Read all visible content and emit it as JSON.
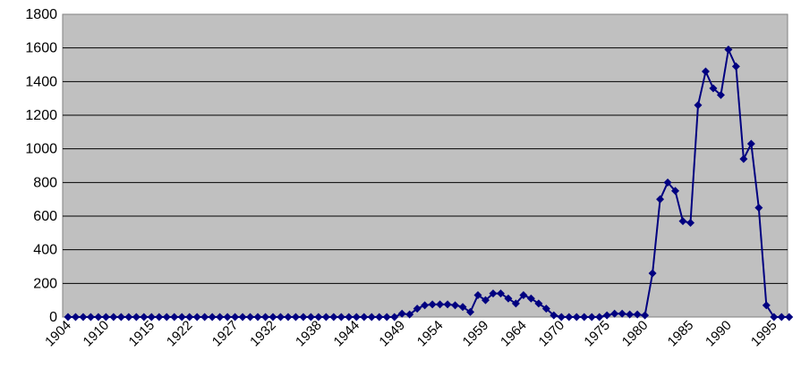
{
  "chart_data": {
    "type": "line",
    "title": "",
    "xlabel": "",
    "ylabel": "",
    "ylim": [
      0,
      1800
    ],
    "y_ticks": [
      0,
      200,
      400,
      600,
      800,
      1000,
      1200,
      1400,
      1600,
      1800
    ],
    "x_tick_labels": [
      "1904",
      "1910",
      "1915",
      "1922",
      "1927",
      "1932",
      "1938",
      "1944",
      "1949",
      "1954",
      "1959",
      "1964",
      "1970",
      "1975",
      "1980",
      "1985",
      "1990",
      "1995"
    ],
    "grid": "horizontal",
    "plot_background": "#c0c0c0",
    "series": [
      {
        "color": "#000080",
        "marker": "diamond",
        "values": [
          0,
          0,
          0,
          0,
          0,
          0,
          0,
          0,
          0,
          0,
          0,
          0,
          0,
          0,
          0,
          0,
          0,
          0,
          0,
          0,
          0,
          0,
          0,
          0,
          0,
          0,
          0,
          0,
          0,
          0,
          0,
          0,
          0,
          0,
          0,
          0,
          0,
          0,
          0,
          0,
          0,
          0,
          0,
          0,
          20,
          15,
          50,
          70,
          75,
          75,
          75,
          70,
          60,
          30,
          130,
          100,
          140,
          140,
          110,
          80,
          130,
          110,
          80,
          50,
          10,
          0,
          0,
          0,
          0,
          0,
          0,
          10,
          20,
          20,
          15,
          15,
          10,
          260,
          700,
          800,
          750,
          570,
          560,
          1260,
          1460,
          1360,
          1320,
          1590,
          1490,
          940,
          1030,
          650,
          70,
          0,
          0,
          0
        ]
      }
    ]
  }
}
